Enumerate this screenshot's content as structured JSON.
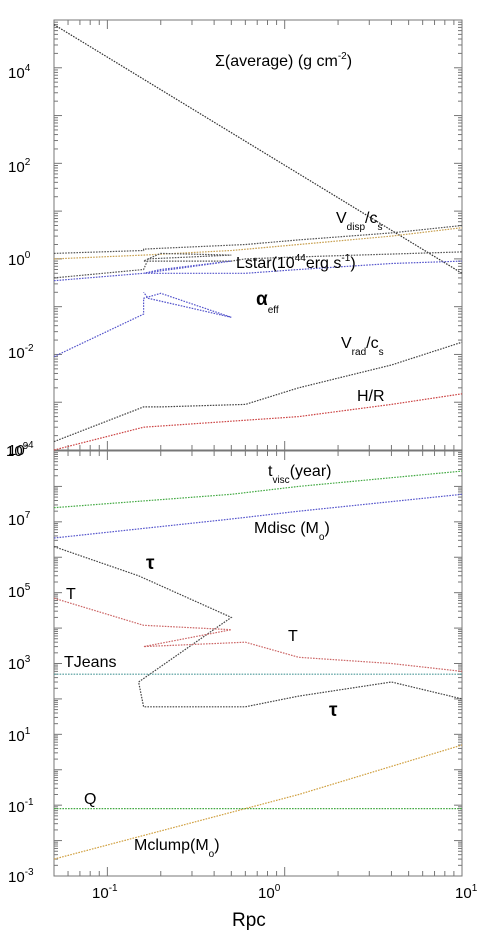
{
  "chart_data": [
    {
      "type": "line",
      "xlabel": "",
      "x_scale": "log",
      "y_scale": "log",
      "xlim": [
        0.05,
        10
      ],
      "ylim": [
        0.0001,
        100000
      ],
      "y_ticks": [
        {
          "base": "10",
          "exp": "4",
          "value": 10000
        },
        {
          "base": "10",
          "exp": "2",
          "value": 100
        },
        {
          "base": "10",
          "exp": "0",
          "value": 1
        },
        {
          "base": "10",
          "exp": "-2",
          "value": 0.01
        }
      ],
      "y_bottom_tick": {
        "base": "10",
        "exp": "-4"
      },
      "labels": {
        "sigma": {
          "main": "Σ(average) (g cm",
          "sup": "-2",
          "tail": ")"
        },
        "vdisp": {
          "main": "V",
          "sub": "disp",
          "mid": "/c",
          "sub2": "s"
        },
        "lstar": {
          "main": "Lstar(10",
          "sup": "44",
          "mid": "erg s",
          "sup2": "-1",
          "tail": ")"
        },
        "alpha": {
          "main": "α",
          "sub": "eff"
        },
        "vrad": {
          "main": "V",
          "sub": "rad",
          "mid": "/c",
          "sub2": "s"
        },
        "hr": {
          "main": "H/R"
        }
      },
      "series": [
        {
          "color": "#333333",
          "x": [
            0.05,
            10
          ],
          "y": [
            80000,
            0.5
          ]
        },
        {
          "color": "#555555",
          "x": [
            0.05,
            0.16,
            0.16,
            0.6,
            1.2,
            4,
            10
          ],
          "y": [
            1.3,
            1.5,
            1.6,
            2.0,
            2.5,
            3.5,
            5
          ]
        },
        {
          "color": "#c8a050",
          "x": [
            0.05,
            0.16,
            0.5,
            1.2,
            4,
            10
          ],
          "y": [
            1.0,
            1.2,
            1.5,
            2.0,
            3.0,
            4.5
          ]
        },
        {
          "color": "#555555",
          "x": [
            0.05,
            0.16,
            0.17,
            0.2,
            0.5,
            0.17,
            0.16,
            0.5,
            0.6,
            1.2,
            10
          ],
          "y": [
            0.4,
            0.6,
            1.0,
            1.3,
            1.2,
            1.0,
            0.9,
            0.9,
            1.0,
            1.1,
            1.4
          ]
        },
        {
          "color": "#5555cc",
          "x": [
            0.05,
            0.16,
            0.16,
            0.2,
            0.5,
            0.5,
            0.16,
            0.6,
            1.2,
            4,
            10
          ],
          "y": [
            0.35,
            0.5,
            0.5,
            0.6,
            0.9,
            0.9,
            0.5,
            0.5,
            0.6,
            0.8,
            0.9
          ]
        },
        {
          "color": "#5555cc",
          "x": [
            0.05,
            0.16,
            0.16,
            0.2,
            0.5,
            0.17,
            0.16
          ],
          "y": [
            0.009,
            0.07,
            0.15,
            0.19,
            0.06,
            0.15,
            0.2
          ]
        },
        {
          "color": "#444444",
          "x": [
            0.05,
            0.16,
            0.2,
            0.6,
            1.2,
            4,
            10
          ],
          "y": [
            0.00015,
            0.0008,
            0.0008,
            0.0009,
            0.002,
            0.006,
            0.018
          ]
        },
        {
          "color": "#cc4444",
          "x": [
            0.05,
            0.16,
            0.5,
            1.2,
            4,
            10
          ],
          "y": [
            0.0001,
            0.0003,
            0.0004,
            0.0005,
            0.0009,
            0.0015
          ]
        }
      ]
    },
    {
      "type": "line",
      "xlabel": "Rpc",
      "x_scale": "log",
      "y_scale": "log",
      "xlim": [
        0.05,
        10
      ],
      "ylim": [
        0.001,
        1000000000
      ],
      "x_ticks": [
        {
          "base": "10",
          "exp": "-1",
          "value": 0.1
        },
        {
          "base": "10",
          "exp": "0",
          "value": 1
        },
        {
          "base": "10",
          "exp": "1",
          "value": 10
        }
      ],
      "y_ticks": [
        {
          "base": "10",
          "exp": "7",
          "value": 10000000
        },
        {
          "base": "10",
          "exp": "5",
          "value": 100000
        },
        {
          "base": "10",
          "exp": "3",
          "value": 1000
        },
        {
          "base": "10",
          "exp": "1",
          "value": 10
        },
        {
          "base": "10",
          "exp": "-1",
          "value": 0.1
        },
        {
          "base": "10",
          "exp": "-3",
          "value": 0.001
        }
      ],
      "y_top_tick": {
        "base": "10",
        "exp": "9"
      },
      "labels": {
        "tvisc": {
          "main": "t",
          "sub": "visc",
          "tail": "(year)"
        },
        "mdisc": {
          "main": "Mdisc (M",
          "sub": "o",
          "tail": ")"
        },
        "tau1": {
          "main": "τ"
        },
        "T1": {
          "main": "T"
        },
        "T2": {
          "main": "T"
        },
        "tjeans": {
          "main": "TJeans"
        },
        "tau2": {
          "main": "τ"
        },
        "Q": {
          "main": "Q"
        },
        "mclump": {
          "main": "Mclump(M",
          "sub": "o",
          "tail": ")"
        }
      },
      "series": [
        {
          "color": "#44aa44",
          "x": [
            0.05,
            0.5,
            1.2,
            10
          ],
          "y": [
            25000000,
            60000000,
            100000000,
            270000000
          ]
        },
        {
          "color": "#5555cc",
          "x": [
            0.05,
            0.5,
            1.2,
            10
          ],
          "y": [
            3500000,
            12000000,
            20000000,
            60000000
          ]
        },
        {
          "color": "#444444",
          "x": [
            0.05,
            0.15,
            0.5,
            0.15,
            0.16,
            0.6,
            1.2,
            4,
            10
          ],
          "y": [
            2000000,
            300000,
            20000,
            300,
            60,
            60,
            120,
            300,
            100
          ]
        },
        {
          "color": "#cc6666",
          "x": [
            0.05,
            0.16,
            0.5,
            0.16,
            0.6,
            1.2,
            4,
            10
          ],
          "y": [
            70000,
            12000,
            9000,
            3000,
            4000,
            1500,
            1000,
            600
          ]
        },
        {
          "color": "#4d9a9a",
          "x": [
            0.05,
            10
          ],
          "y": [
            500,
            500
          ]
        },
        {
          "color": "#44aa44",
          "x": [
            0.05,
            10
          ],
          "y": [
            0.08,
            0.08
          ]
        },
        {
          "color": "#d0a040",
          "x": [
            0.05,
            0.6,
            1.2,
            10
          ],
          "y": [
            0.003,
            0.08,
            0.2,
            5
          ]
        }
      ]
    }
  ]
}
